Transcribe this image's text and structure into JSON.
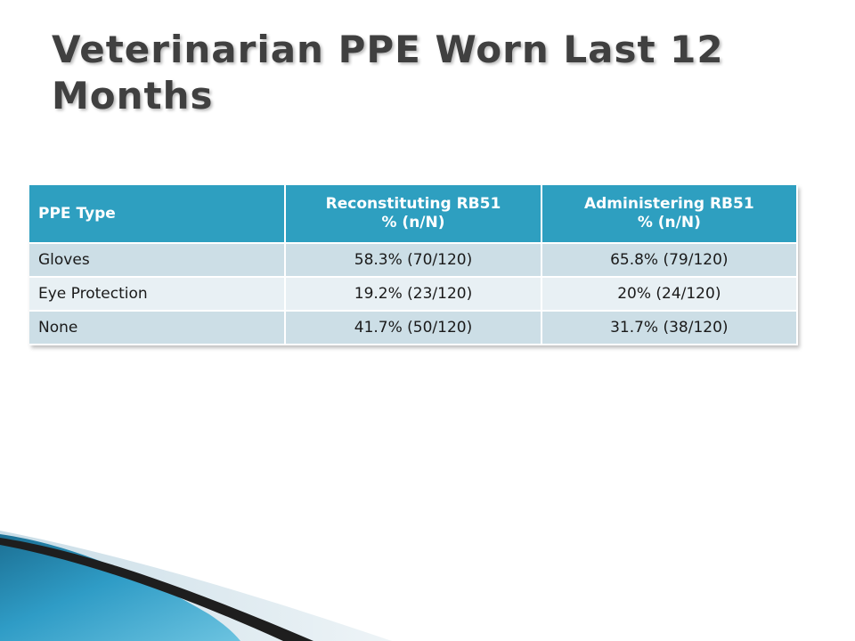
{
  "slide": {
    "title": "Veterinarian PPE Worn Last 12 Months"
  },
  "table": {
    "headers": [
      {
        "line1": "PPE Type",
        "line2": ""
      },
      {
        "line1": "Reconstituting RB51",
        "line2": "% (n/N)"
      },
      {
        "line1": "Administering RB51",
        "line2": "% (n/N)"
      }
    ],
    "rows": [
      {
        "type": "Gloves",
        "reconstituting": "58.3% (70/120)",
        "administering": "65.8% (79/120)"
      },
      {
        "type": "Eye Protection",
        "reconstituting": "19.2% (23/120)",
        "administering": "20% (24/120)"
      },
      {
        "type": "None",
        "reconstituting": "41.7% (50/120)",
        "administering": "31.7% (38/120)"
      }
    ]
  },
  "colors": {
    "header_bg": "#2e9fc0",
    "row_odd_bg": "#ccdee6",
    "row_even_bg": "#e8f0f4",
    "title_color": "#404040",
    "accent_teal": "#1f7fa6"
  }
}
